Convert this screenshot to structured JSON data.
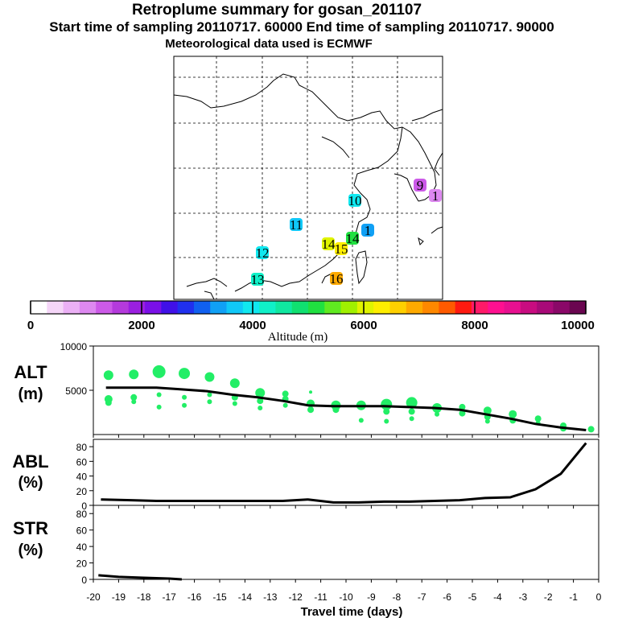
{
  "header": {
    "title": "Retroplume summary for gosan_201107",
    "sampling": "Start time of sampling 20110717. 60000     End time of sampling 20110717. 90000",
    "met": "Meteorological data used is ECMWF"
  },
  "colorbar": {
    "colors": [
      "#ffffff",
      "#f5d6f8",
      "#ebb0f5",
      "#dd88f0",
      "#cc5ae8",
      "#b43adc",
      "#9a1fe0",
      "#7a10e8",
      "#4010e8",
      "#2030ee",
      "#1060f0",
      "#10a0f5",
      "#10c8f8",
      "#10e8f0",
      "#10f0c8",
      "#10e8a0",
      "#10e070",
      "#20e040",
      "#60ea20",
      "#a0f000",
      "#e0f400",
      "#ffee00",
      "#ffd000",
      "#ffaa00",
      "#ff8800",
      "#ff5a00",
      "#ff1a10",
      "#ff1a68",
      "#ff1090",
      "#e81090",
      "#c80c80",
      "#a80a78",
      "#8a0868",
      "#6a0650"
    ],
    "tick_labels": [
      "0",
      "2000",
      "4000",
      "6000",
      "8000",
      "10000"
    ],
    "tick_values": [
      0,
      2000,
      4000,
      6000,
      8000,
      10000
    ],
    "label": "Altitude (m)"
  },
  "map": {
    "markers": [
      {
        "label": "1",
        "color": "#dd88f0"
      },
      {
        "label": "9",
        "color": "#cc5ae8"
      },
      {
        "label": "10",
        "color": "#10e8f0"
      },
      {
        "label": "11",
        "color": "#10c8f8"
      },
      {
        "label": "12",
        "color": "#10e8f0"
      },
      {
        "label": "13",
        "color": "#10f0c8"
      },
      {
        "label": "14",
        "color": "#e0f400"
      },
      {
        "label": "15",
        "color": "#ffee00"
      },
      {
        "label": "16",
        "color": "#ffaa00"
      },
      {
        "label": "1",
        "color": "#10a0f5"
      },
      {
        "label": "14",
        "color": "#20e040"
      }
    ]
  },
  "chart_data": [
    {
      "type": "line",
      "name": "ALT",
      "ylabel": "ALT\n(m)",
      "ylim": [
        0,
        10000
      ],
      "ytick_labels": [
        "5000",
        "10000"
      ],
      "ytick_values": [
        5000,
        10000
      ],
      "x": [
        -19.5,
        -18.5,
        -17.5,
        -16.5,
        -15.5,
        -14.5,
        -13.5,
        -12.5,
        -11.5,
        -10.5,
        -9.5,
        -8.5,
        -7.5,
        -6.5,
        -5.5,
        -4.5,
        -3.5,
        -2.5,
        -1.5,
        -0.5
      ],
      "median": [
        5300,
        5300,
        5300,
        5100,
        4900,
        4500,
        4200,
        3800,
        3300,
        3200,
        3200,
        3200,
        3100,
        3000,
        2800,
        2300,
        1800,
        1200,
        800,
        500
      ],
      "scatter": [
        {
          "x": -19.4,
          "y": 6700,
          "s": 6
        },
        {
          "x": -19.4,
          "y": 4000,
          "s": 5
        },
        {
          "x": -19.4,
          "y": 3600,
          "s": 4
        },
        {
          "x": -18.4,
          "y": 6800,
          "s": 6
        },
        {
          "x": -18.4,
          "y": 4200,
          "s": 4
        },
        {
          "x": -18.4,
          "y": 3700,
          "s": 3
        },
        {
          "x": -17.4,
          "y": 7100,
          "s": 8
        },
        {
          "x": -17.4,
          "y": 4500,
          "s": 3
        },
        {
          "x": -17.4,
          "y": 3100,
          "s": 3
        },
        {
          "x": -16.4,
          "y": 6900,
          "s": 7
        },
        {
          "x": -16.4,
          "y": 4200,
          "s": 3
        },
        {
          "x": -16.4,
          "y": 3300,
          "s": 3
        },
        {
          "x": -15.4,
          "y": 6500,
          "s": 6
        },
        {
          "x": -15.4,
          "y": 4500,
          "s": 3
        },
        {
          "x": -15.4,
          "y": 3700,
          "s": 3
        },
        {
          "x": -14.4,
          "y": 5800,
          "s": 6
        },
        {
          "x": -14.4,
          "y": 4200,
          "s": 4
        },
        {
          "x": -14.4,
          "y": 3500,
          "s": 3
        },
        {
          "x": -13.4,
          "y": 4700,
          "s": 6
        },
        {
          "x": -13.4,
          "y": 3800,
          "s": 4
        },
        {
          "x": -13.4,
          "y": 3000,
          "s": 3
        },
        {
          "x": -12.4,
          "y": 4600,
          "s": 4
        },
        {
          "x": -12.4,
          "y": 4000,
          "s": 4
        },
        {
          "x": -12.4,
          "y": 3300,
          "s": 3
        },
        {
          "x": -11.4,
          "y": 4800,
          "s": 2
        },
        {
          "x": -11.4,
          "y": 3500,
          "s": 5
        },
        {
          "x": -11.4,
          "y": 2800,
          "s": 4
        },
        {
          "x": -10.4,
          "y": 3300,
          "s": 6
        },
        {
          "x": -10.4,
          "y": 2800,
          "s": 4
        },
        {
          "x": -9.4,
          "y": 3300,
          "s": 6
        },
        {
          "x": -9.4,
          "y": 1600,
          "s": 3
        },
        {
          "x": -8.4,
          "y": 3400,
          "s": 7
        },
        {
          "x": -8.4,
          "y": 2600,
          "s": 4
        },
        {
          "x": -8.4,
          "y": 1500,
          "s": 3
        },
        {
          "x": -7.4,
          "y": 3600,
          "s": 7
        },
        {
          "x": -7.4,
          "y": 2600,
          "s": 4
        },
        {
          "x": -7.4,
          "y": 1800,
          "s": 3
        },
        {
          "x": -6.4,
          "y": 3000,
          "s": 6
        },
        {
          "x": -6.4,
          "y": 2300,
          "s": 3
        },
        {
          "x": -5.4,
          "y": 3100,
          "s": 4
        },
        {
          "x": -5.4,
          "y": 2400,
          "s": 4
        },
        {
          "x": -4.4,
          "y": 2700,
          "s": 5
        },
        {
          "x": -4.4,
          "y": 2000,
          "s": 4
        },
        {
          "x": -4.4,
          "y": 1500,
          "s": 3
        },
        {
          "x": -3.4,
          "y": 2300,
          "s": 5
        },
        {
          "x": -3.4,
          "y": 1600,
          "s": 4
        },
        {
          "x": -2.4,
          "y": 1800,
          "s": 4
        },
        {
          "x": -2.4,
          "y": 1300,
          "s": 3
        },
        {
          "x": -1.4,
          "y": 1000,
          "s": 4
        },
        {
          "x": -1.4,
          "y": 700,
          "s": 4
        },
        {
          "x": -0.3,
          "y": 600,
          "s": 4
        }
      ]
    },
    {
      "type": "line",
      "name": "ABL",
      "ylabel": "ABL\n(%)",
      "ylim": [
        0,
        90
      ],
      "ytick_labels": [
        "0",
        "20",
        "40",
        "60",
        "80"
      ],
      "ytick_values": [
        0,
        20,
        40,
        60,
        80
      ],
      "x": [
        -19.7,
        -18.5,
        -17.5,
        -16.5,
        -15.5,
        -14.5,
        -13.5,
        -12.5,
        -11.5,
        -10.5,
        -9.5,
        -8.5,
        -7.5,
        -6.5,
        -5.5,
        -4.5,
        -3.5,
        -2.5,
        -1.5,
        -0.5
      ],
      "values": [
        8,
        7,
        6,
        6,
        6,
        6,
        6,
        6,
        8,
        4,
        4,
        5,
        5,
        6,
        7,
        10,
        11,
        22,
        43,
        85
      ]
    },
    {
      "type": "line",
      "name": "STR",
      "ylabel": "STR\n(%)",
      "ylim": [
        0,
        90
      ],
      "ytick_labels": [
        "0",
        "20",
        "40",
        "60",
        "80"
      ],
      "ytick_values": [
        0,
        20,
        40,
        60,
        80
      ],
      "x": [
        -19.8,
        -19.0,
        -18.0,
        -17.0,
        -16.5
      ],
      "values": [
        5,
        3,
        2,
        1,
        0
      ]
    }
  ],
  "xaxis": {
    "label": "Travel time (days)",
    "tick_labels": [
      "-20",
      "-19",
      "-18",
      "-17",
      "-16",
      "-15",
      "-14",
      "-13",
      "-12",
      "-11",
      "-10",
      "-9",
      "-8",
      "-7",
      "-6",
      "-5",
      "-4",
      "-3",
      "-2",
      "-1",
      "0"
    ],
    "tick_values": [
      -20,
      -19,
      -18,
      -17,
      -16,
      -15,
      -14,
      -13,
      -12,
      -11,
      -10,
      -9,
      -8,
      -7,
      -6,
      -5,
      -4,
      -3,
      -2,
      -1,
      0
    ]
  }
}
